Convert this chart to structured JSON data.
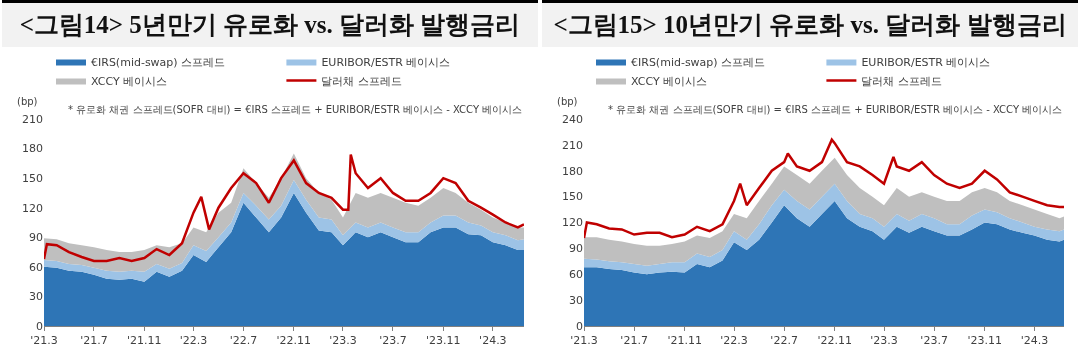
{
  "chart_data": [
    {
      "type": "area",
      "title": "<그림14> 5년만기 유로화 vs. 달러화 발행금리",
      "ylabel": "(bp)",
      "stacked": true,
      "legend": "top",
      "annotations": [
        "* 유로화 채권 스프레드(SOFR 대비) = €IRS 스프레드 + EURIBOR/ESTR 베이시스 - XCCY 베이시스"
      ],
      "x": [
        "2021-03-01",
        "2021-04-01",
        "2021-05-01",
        "2021-06-01",
        "2021-07-01",
        "2021-08-01",
        "2021-09-01",
        "2021-10-01",
        "2021-11-01",
        "2021-12-01",
        "2022-01-01",
        "2022-02-01",
        "2022-03-01",
        "2022-04-01",
        "2022-05-01",
        "2022-06-01",
        "2022-07-01",
        "2022-08-01",
        "2022-09-01",
        "2022-10-01",
        "2022-11-01",
        "2022-12-01",
        "2023-01-01",
        "2023-02-01",
        "2023-03-01",
        "2023-04-01",
        "2023-05-01",
        "2023-06-01",
        "2023-07-01",
        "2023-08-01",
        "2023-09-01",
        "2023-10-01",
        "2023-11-01",
        "2023-12-01",
        "2024-01-01",
        "2024-02-01",
        "2024-03-01",
        "2024-04-01",
        "2024-05-01",
        "2024-05-16"
      ],
      "series": [
        {
          "name": "€IRS(mid-swap) 스프레드",
          "color": "#2e75b6",
          "values": [
            60,
            59,
            56,
            55,
            52,
            48,
            47,
            48,
            45,
            55,
            50,
            56,
            72,
            65,
            80,
            95,
            125,
            110,
            95,
            110,
            135,
            115,
            97,
            95,
            82,
            95,
            90,
            95,
            90,
            85,
            85,
            95,
            100,
            100,
            93,
            92,
            85,
            82,
            77,
            77
          ]
        },
        {
          "name": "EURIBOR/ESTR 베이시스",
          "color": "#9dc3e6",
          "values": [
            7,
            7,
            7,
            7,
            7,
            8,
            8,
            8,
            10,
            8,
            8,
            8,
            10,
            11,
            10,
            10,
            10,
            12,
            13,
            12,
            13,
            13,
            13,
            13,
            10,
            10,
            10,
            10,
            10,
            10,
            10,
            10,
            12,
            12,
            12,
            10,
            10,
            10,
            10,
            11
          ]
        },
        {
          "name": "XCCY 베이시스",
          "color": "#bfbfbf",
          "values": [
            22,
            22,
            21,
            20,
            21,
            21,
            20,
            19,
            22,
            19,
            22,
            20,
            18,
            19,
            25,
            20,
            25,
            23,
            22,
            28,
            27,
            22,
            25,
            20,
            18,
            30,
            30,
            30,
            30,
            30,
            27,
            25,
            28,
            23,
            20,
            16,
            15,
            13,
            13,
            12
          ]
        },
        {
          "name": "달러채 스프레드",
          "type": "line",
          "color": "#c00000",
          "x": [
            "2021-03-01",
            "2021-03-08",
            "2021-04-01",
            "2021-05-01",
            "2021-06-01",
            "2021-07-01",
            "2021-08-01",
            "2021-09-01",
            "2021-10-01",
            "2021-11-01",
            "2021-12-01",
            "2022-01-01",
            "2022-02-01",
            "2022-03-01",
            "2022-03-20",
            "2022-04-08",
            "2022-05-01",
            "2022-06-01",
            "2022-07-01",
            "2022-08-01",
            "2022-09-01",
            "2022-10-01",
            "2022-11-01",
            "2022-12-01",
            "2023-01-01",
            "2023-02-01",
            "2023-03-01",
            "2023-03-14",
            "2023-03-20",
            "2023-04-01",
            "2023-05-01",
            "2023-06-01",
            "2023-07-01",
            "2023-08-01",
            "2023-09-01",
            "2023-10-01",
            "2023-11-01",
            "2023-12-01",
            "2024-01-01",
            "2024-02-01",
            "2024-03-01",
            "2024-04-01",
            "2024-05-01",
            "2024-05-16"
          ],
          "values": [
            68,
            83,
            82,
            75,
            70,
            66,
            66,
            69,
            66,
            69,
            78,
            72,
            84,
            115,
            131,
            98,
            120,
            140,
            155,
            145,
            125,
            150,
            168,
            145,
            135,
            130,
            118,
            118,
            174,
            155,
            140,
            150,
            135,
            127,
            127,
            135,
            150,
            145,
            127,
            120,
            113,
            105,
            100,
            103
          ]
        }
      ],
      "xlim": [
        "2021-03-01",
        "2024-05-16"
      ],
      "xticks": [
        {
          "value": "2021-03-01",
          "label": "'21.3"
        },
        {
          "value": "2021-07-01",
          "label": "'21.7"
        },
        {
          "value": "2021-11-01",
          "label": "'21.11"
        },
        {
          "value": "2022-03-01",
          "label": "'22.3"
        },
        {
          "value": "2022-07-01",
          "label": "'22.7"
        },
        {
          "value": "2022-11-01",
          "label": "'22.11"
        },
        {
          "value": "2023-03-01",
          "label": "'23.3"
        },
        {
          "value": "2023-07-01",
          "label": "'23.7"
        },
        {
          "value": "2023-11-01",
          "label": "'23.11"
        },
        {
          "value": "2024-03-01",
          "label": "'24.3"
        }
      ],
      "ylim": [
        0,
        210
      ],
      "yticks": [
        0,
        30,
        60,
        90,
        120,
        150,
        180,
        210
      ]
    },
    {
      "type": "area",
      "title": "<그림15> 10년만기 유로화 vs. 달러화 발행금리",
      "ylabel": "(bp)",
      "stacked": true,
      "legend": "top",
      "annotations": [
        "* 유로화 채권 스프레드(SOFR 대비) = €IRS 스프레드 + EURIBOR/ESTR 베이시스 - XCCY 베이시스"
      ],
      "x": [
        "2021-03-01",
        "2021-04-01",
        "2021-05-01",
        "2021-06-01",
        "2021-07-01",
        "2021-08-01",
        "2021-09-01",
        "2021-10-01",
        "2021-11-01",
        "2021-12-01",
        "2022-01-01",
        "2022-02-01",
        "2022-03-01",
        "2022-04-01",
        "2022-05-01",
        "2022-06-01",
        "2022-07-01",
        "2022-08-01",
        "2022-09-01",
        "2022-10-01",
        "2022-11-01",
        "2022-12-01",
        "2023-01-01",
        "2023-02-01",
        "2023-03-01",
        "2023-04-01",
        "2023-05-01",
        "2023-06-01",
        "2023-07-01",
        "2023-08-01",
        "2023-09-01",
        "2023-10-01",
        "2023-11-01",
        "2023-12-01",
        "2024-01-01",
        "2024-02-01",
        "2024-03-01",
        "2024-04-01",
        "2024-05-01",
        "2024-05-12"
      ],
      "series": [
        {
          "name": "€IRS(mid-swap) 스프레드",
          "color": "#2e75b6",
          "values": [
            68,
            68,
            66,
            65,
            62,
            60,
            62,
            63,
            62,
            72,
            68,
            76,
            97,
            88,
            100,
            120,
            140,
            125,
            115,
            130,
            145,
            125,
            115,
            110,
            100,
            115,
            108,
            115,
            110,
            105,
            105,
            112,
            120,
            118,
            112,
            108,
            105,
            100,
            98,
            100
          ]
        },
        {
          "name": "EURIBOR/ESTR 베이시스",
          "color": "#9dc3e6",
          "values": [
            10,
            9,
            9,
            9,
            10,
            10,
            10,
            11,
            12,
            12,
            12,
            12,
            13,
            12,
            18,
            20,
            18,
            20,
            20,
            20,
            20,
            20,
            15,
            15,
            15,
            15,
            14,
            15,
            15,
            13,
            13,
            16,
            15,
            14,
            13,
            12,
            10,
            12,
            12,
            12
          ]
        },
        {
          "name": "XCCY 베이시스",
          "color": "#bfbfbf",
          "values": [
            25,
            26,
            25,
            24,
            23,
            23,
            21,
            21,
            24,
            21,
            22,
            22,
            20,
            25,
            27,
            25,
            27,
            30,
            30,
            30,
            30,
            30,
            30,
            25,
            25,
            30,
            28,
            25,
            25,
            27,
            27,
            27,
            25,
            23,
            20,
            20,
            20,
            18,
            15,
            15
          ]
        },
        {
          "name": "달러채 스프레드",
          "type": "line",
          "color": "#c00000",
          "x": [
            "2021-03-01",
            "2021-03-08",
            "2021-04-01",
            "2021-05-01",
            "2021-06-01",
            "2021-07-01",
            "2021-08-01",
            "2021-09-01",
            "2021-10-01",
            "2021-11-01",
            "2021-12-01",
            "2022-01-01",
            "2022-02-01",
            "2022-03-01",
            "2022-03-16",
            "2022-04-01",
            "2022-05-01",
            "2022-06-01",
            "2022-07-01",
            "2022-07-10",
            "2022-08-01",
            "2022-09-01",
            "2022-10-01",
            "2022-10-25",
            "2022-11-01",
            "2022-12-01",
            "2023-01-01",
            "2023-02-01",
            "2023-03-01",
            "2023-03-24",
            "2023-04-01",
            "2023-05-01",
            "2023-06-01",
            "2023-07-01",
            "2023-08-01",
            "2023-09-01",
            "2023-10-01",
            "2023-11-01",
            "2023-12-01",
            "2024-01-01",
            "2024-02-01",
            "2024-03-01",
            "2024-04-01",
            "2024-05-01",
            "2024-05-12"
          ],
          "values": [
            102,
            120,
            118,
            113,
            112,
            106,
            108,
            108,
            103,
            106,
            115,
            110,
            118,
            145,
            165,
            140,
            160,
            180,
            190,
            200,
            185,
            180,
            190,
            216,
            212,
            190,
            185,
            175,
            165,
            196,
            185,
            180,
            190,
            175,
            165,
            160,
            165,
            180,
            170,
            155,
            150,
            145,
            140,
            138,
            138
          ]
        }
      ],
      "xlim": [
        "2021-03-01",
        "2024-05-12"
      ],
      "xticks": [
        {
          "value": "2021-03-01",
          "label": "'21.3"
        },
        {
          "value": "2021-07-01",
          "label": "'21.7"
        },
        {
          "value": "2021-11-01",
          "label": "'21.11"
        },
        {
          "value": "2022-03-01",
          "label": "'22.3"
        },
        {
          "value": "2022-07-01",
          "label": "'22.7"
        },
        {
          "value": "2022-11-01",
          "label": "'22.11"
        },
        {
          "value": "2023-03-01",
          "label": "'23.3"
        },
        {
          "value": "2023-07-01",
          "label": "'23.7"
        },
        {
          "value": "2023-11-01",
          "label": "'23.11"
        },
        {
          "value": "2024-03-01",
          "label": "'24.3"
        }
      ],
      "ylim": [
        0,
        240
      ],
      "yticks": [
        0,
        30,
        60,
        90,
        120,
        150,
        180,
        210,
        240
      ]
    }
  ]
}
